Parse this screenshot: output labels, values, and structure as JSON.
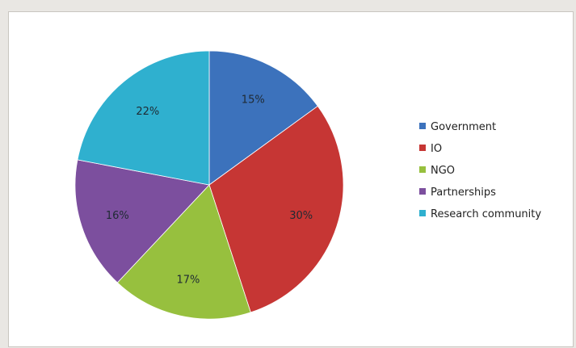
{
  "chart_data": {
    "type": "pie",
    "title": "",
    "start_angle_deg": -90,
    "direction": "clockwise",
    "slices": [
      {
        "label": "Government",
        "value": 15,
        "display": "15%",
        "color": "#3c72bc"
      },
      {
        "label": "IO",
        "value": 30,
        "display": "30%",
        "color": "#c63634"
      },
      {
        "label": "NGO",
        "value": 17,
        "display": "17%",
        "color": "#97c03e"
      },
      {
        "label": "Partnerships",
        "value": 16,
        "display": "16%",
        "color": "#7c4f9e"
      },
      {
        "label": "Research community",
        "value": 22,
        "display": "22%",
        "color": "#2fb0cf"
      }
    ],
    "legend_placement": "right"
  }
}
